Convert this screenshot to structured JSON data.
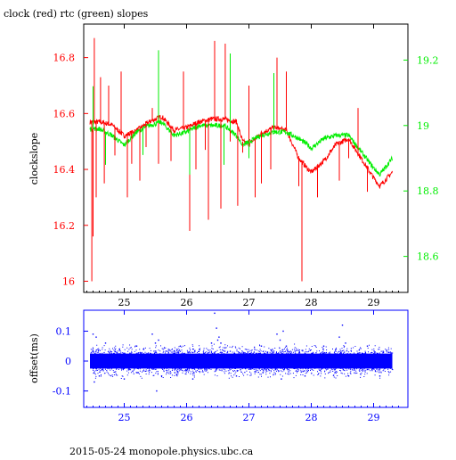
{
  "header": {
    "title": "clock (red) rtc (green) slopes"
  },
  "footer": {
    "text": "2015-05-24 monopole.physics.ubc.ca"
  },
  "colors": {
    "clock": "#ff0000",
    "rtc": "#00ee00",
    "offset": "#0000ff",
    "axis": "#000000"
  },
  "chart_data": [
    {
      "type": "line",
      "title": "clock (red) rtc (green) slopes",
      "ylabel": "clockslope",
      "xlim": [
        24.35,
        29.55
      ],
      "ylim": [
        15.96,
        16.92
      ],
      "y2lim": [
        18.49,
        19.31
      ],
      "xticks": [
        "25",
        "26",
        "27",
        "28",
        "29"
      ],
      "yticks": [
        "16",
        "16.2",
        "16.4",
        "16.6",
        "16.8"
      ],
      "y2ticks": [
        "18.6",
        "18.8",
        "19",
        "19.2"
      ],
      "grid": false,
      "series": [
        {
          "name": "clock",
          "axis": "left",
          "x": [
            24.45,
            24.6,
            24.8,
            25.0,
            25.2,
            25.4,
            25.6,
            25.8,
            26.0,
            26.2,
            26.4,
            26.6,
            26.8,
            26.9,
            27.0,
            27.2,
            27.4,
            27.6,
            27.8,
            27.95,
            28.0,
            28.2,
            28.4,
            28.6,
            28.8,
            29.0,
            29.1,
            29.3
          ],
          "y": [
            16.57,
            16.57,
            16.56,
            16.52,
            16.54,
            16.57,
            16.59,
            16.54,
            16.55,
            16.57,
            16.58,
            16.58,
            16.57,
            16.5,
            16.49,
            16.53,
            16.55,
            16.54,
            16.44,
            16.4,
            16.39,
            16.43,
            16.49,
            16.51,
            16.44,
            16.37,
            16.34,
            16.39
          ]
        },
        {
          "name": "rtc",
          "axis": "right",
          "x": [
            24.45,
            24.6,
            24.8,
            25.0,
            25.2,
            25.4,
            25.6,
            25.8,
            26.0,
            26.2,
            26.4,
            26.6,
            26.8,
            26.9,
            27.0,
            27.2,
            27.4,
            27.6,
            27.8,
            27.95,
            28.0,
            28.2,
            28.4,
            28.6,
            28.8,
            29.0,
            29.1,
            29.3
          ],
          "y": [
            18.99,
            18.99,
            18.97,
            18.94,
            18.98,
            19.0,
            19.01,
            18.97,
            18.98,
            19.0,
            19.0,
            19.0,
            18.97,
            18.94,
            18.95,
            18.97,
            18.98,
            18.98,
            18.96,
            18.94,
            18.93,
            18.96,
            18.97,
            18.97,
            18.92,
            18.87,
            18.85,
            18.9
          ]
        }
      ],
      "spikes": [
        {
          "series": "clock",
          "x": [
            24.48,
            24.5,
            24.52,
            24.55,
            24.62,
            24.68,
            24.75,
            24.85,
            24.95,
            25.05,
            25.12,
            25.25,
            25.35,
            25.45,
            25.55,
            25.75,
            25.95,
            26.05,
            26.15,
            26.3,
            26.35,
            26.45,
            26.55,
            26.62,
            26.7,
            26.82,
            26.9,
            27.0,
            27.1,
            27.2,
            27.35,
            27.45,
            27.6,
            27.8,
            27.85,
            28.1,
            28.3,
            28.45,
            28.6,
            28.75,
            28.9
          ],
          "y": [
            16.0,
            16.16,
            16.87,
            16.3,
            16.73,
            16.35,
            16.7,
            16.45,
            16.75,
            16.3,
            16.42,
            16.36,
            16.48,
            16.62,
            16.42,
            16.43,
            16.75,
            16.18,
            16.4,
            16.47,
            16.22,
            16.86,
            16.26,
            16.85,
            16.5,
            16.27,
            16.46,
            16.7,
            16.3,
            16.35,
            16.4,
            16.8,
            16.75,
            16.34,
            16.0,
            16.3,
            16.47,
            16.36,
            16.44,
            16.62,
            16.32
          ]
        },
        {
          "series": "rtc",
          "x": [
            24.5,
            24.7,
            25.3,
            25.55,
            26.05,
            26.6,
            26.7,
            27.0,
            27.4,
            27.8
          ],
          "y": [
            19.12,
            18.88,
            18.91,
            19.23,
            18.85,
            18.88,
            19.22,
            18.9,
            19.16,
            18.96
          ]
        }
      ]
    },
    {
      "type": "scatter",
      "ylabel": "offset(ms)",
      "xlim": [
        24.35,
        29.55
      ],
      "ylim": [
        -0.155,
        0.17
      ],
      "xticks": [
        "25",
        "26",
        "27",
        "28",
        "29"
      ],
      "yticks": [
        "-0.1",
        "0",
        "0.1"
      ],
      "grid": false,
      "band": {
        "name": "offset",
        "x_range": [
          24.45,
          29.3
        ],
        "y_range": [
          -0.025,
          0.025
        ]
      },
      "outliers": {
        "x": [
          24.5,
          24.52,
          24.55,
          24.6,
          24.7,
          25.0,
          25.2,
          25.45,
          25.5,
          25.52,
          25.55,
          25.6,
          25.9,
          26.1,
          26.4,
          26.45,
          26.48,
          26.5,
          26.52,
          26.55,
          26.8,
          27.2,
          27.45,
          27.5,
          27.52,
          27.55,
          27.6,
          27.9,
          28.2,
          28.45,
          28.5,
          28.55,
          28.6,
          28.9,
          29.1
        ],
        "y": [
          0.09,
          -0.07,
          0.08,
          -0.05,
          0.06,
          -0.06,
          0.05,
          0.09,
          0.06,
          -0.1,
          0.07,
          -0.05,
          0.05,
          -0.06,
          0.06,
          0.16,
          0.11,
          0.07,
          0.08,
          0.06,
          -0.05,
          0.05,
          0.09,
          0.07,
          -0.06,
          0.1,
          0.05,
          -0.05,
          0.05,
          0.08,
          0.12,
          0.06,
          -0.05,
          0.05,
          -0.05
        ]
      }
    }
  ]
}
